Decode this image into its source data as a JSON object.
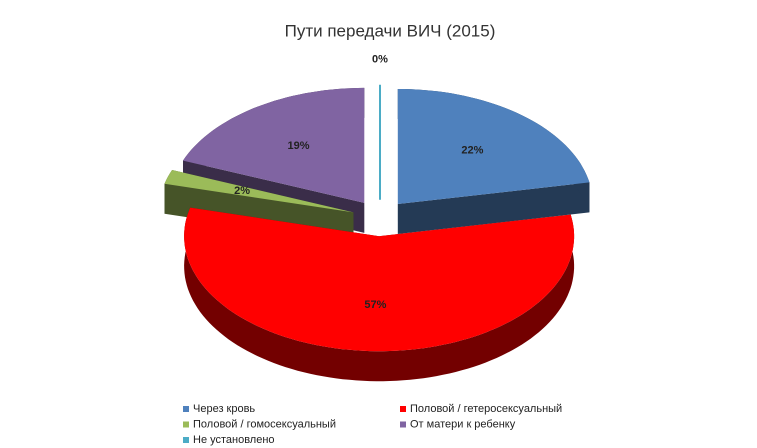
{
  "chart_data": {
    "type": "pie",
    "title": "Пути передачи ВИЧ (2015)",
    "categories": [
      "Через кровь",
      "Половой / гетеросексуальный",
      "Половой / гомосексуальный",
      "От матери к ребенку",
      "Не установлено"
    ],
    "values": [
      22,
      57,
      2,
      19,
      0
    ],
    "value_labels": [
      "22%",
      "57%",
      "2%",
      "19%",
      "0%"
    ],
    "colors": [
      "#4f81bd",
      "#ff0000",
      "#9bbb59",
      "#8064a2",
      "#4bacc6"
    ]
  }
}
